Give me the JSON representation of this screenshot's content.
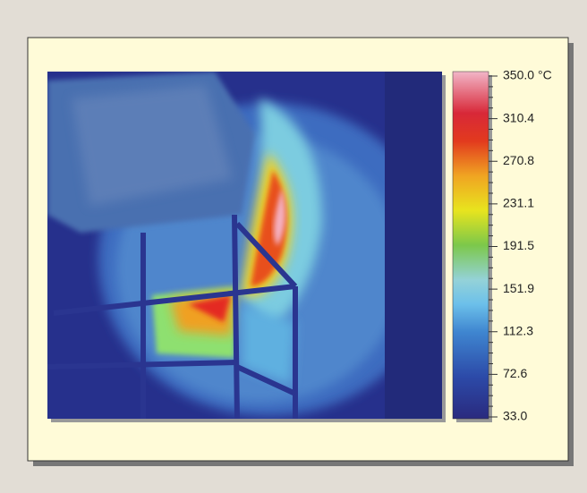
{
  "colorbar": {
    "unit": "°C",
    "ticks": [
      "350.0",
      "310.4",
      "270.8",
      "231.1",
      "191.5",
      "151.9",
      "112.3",
      "72.6",
      "33.0"
    ]
  }
}
